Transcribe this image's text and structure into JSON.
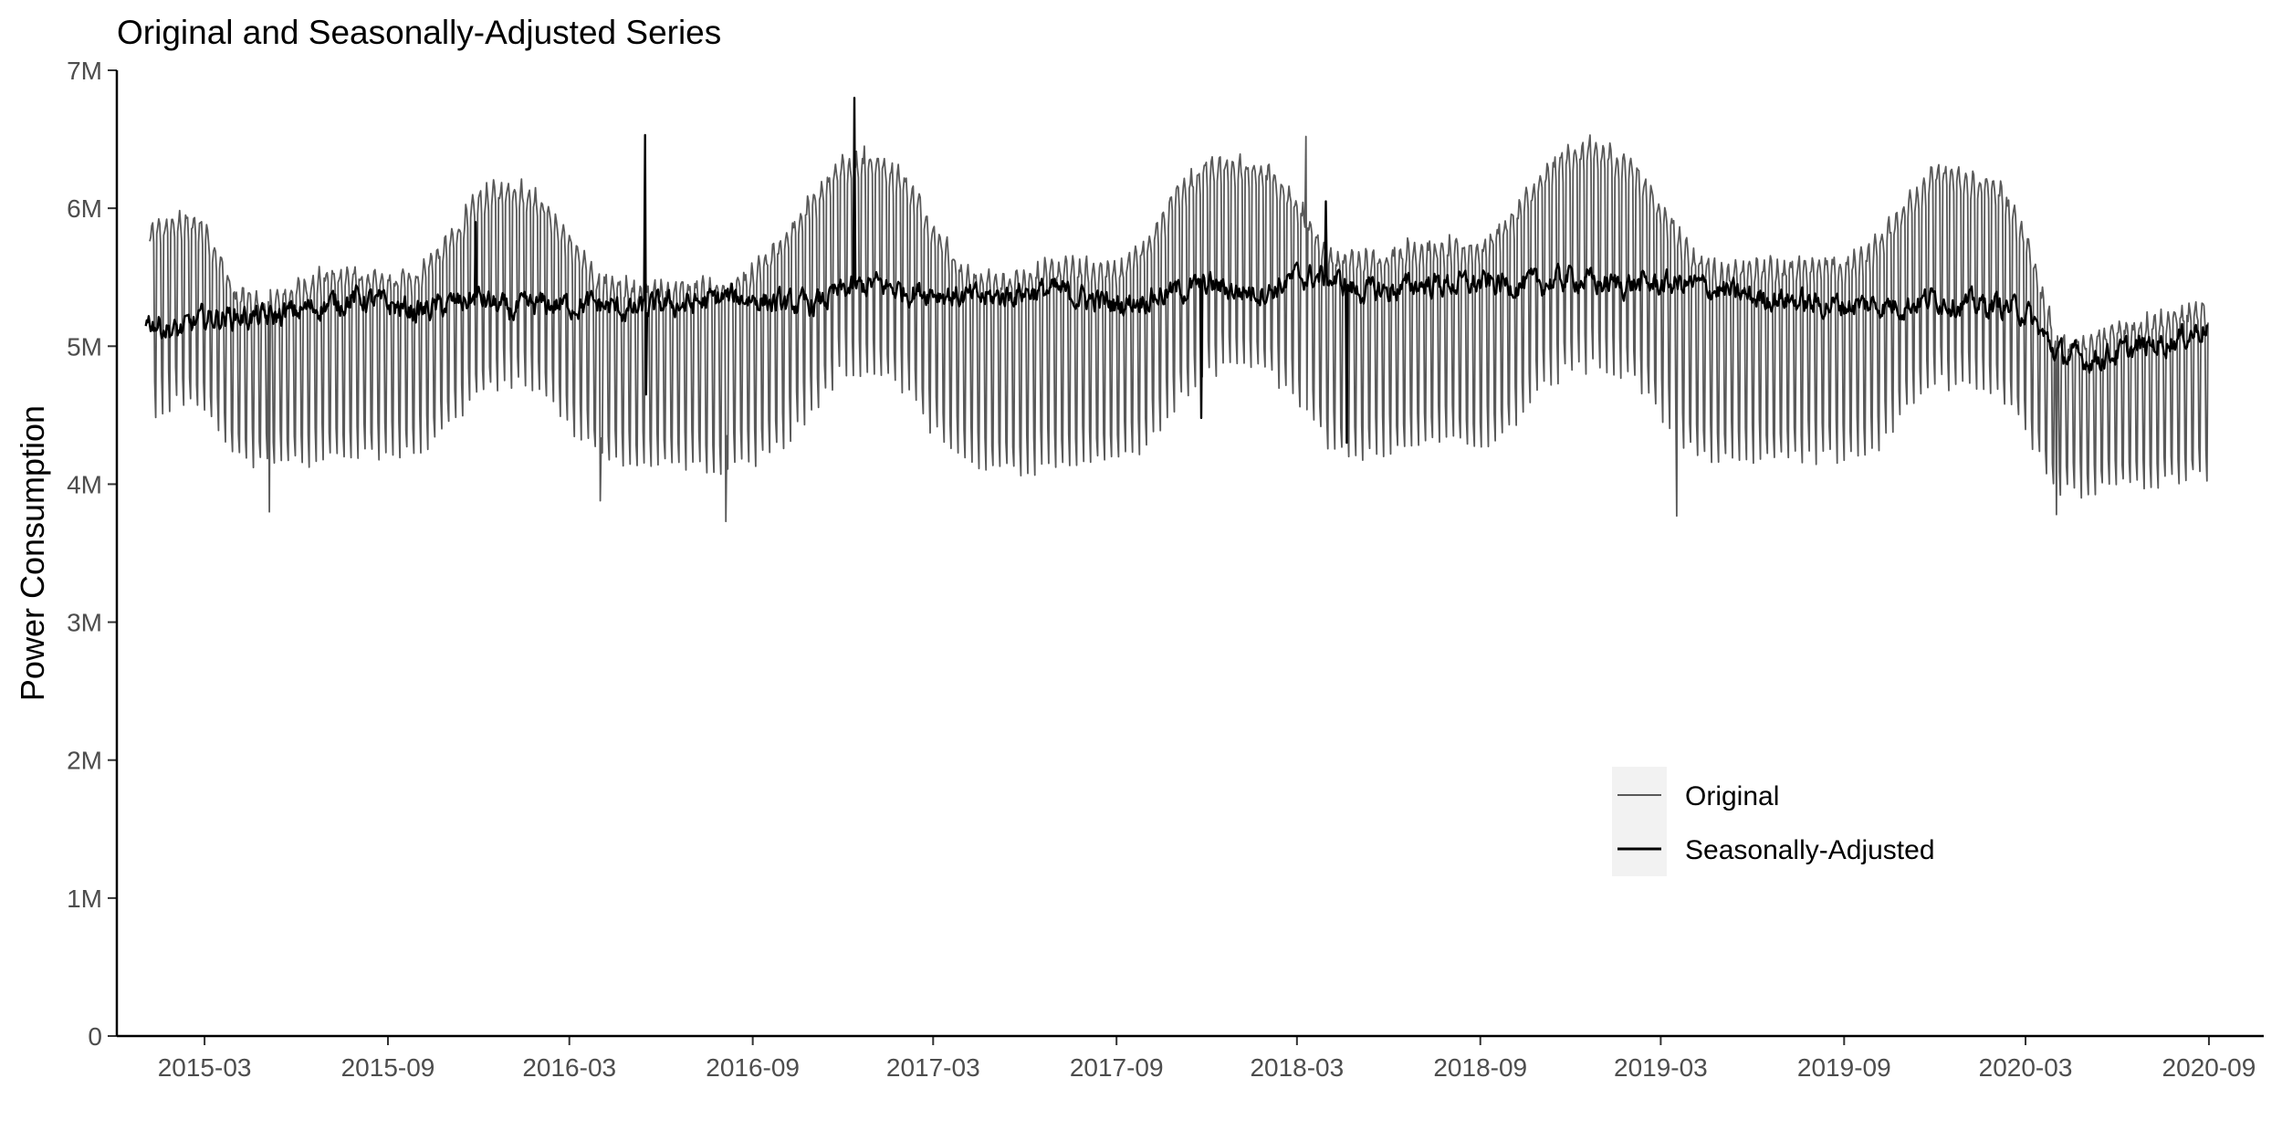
{
  "chart_data": {
    "type": "line",
    "title": "Original and Seasonally-Adjusted Series",
    "xlabel": "",
    "ylabel": "Power Consumption",
    "x_type": "time",
    "xlim": [
      "2014-12-03",
      "2020-10-26"
    ],
    "x_ticks": [
      "2015-03",
      "2015-09",
      "2016-03",
      "2016-09",
      "2017-03",
      "2017-09",
      "2018-03",
      "2018-09",
      "2019-03",
      "2019-09",
      "2020-03",
      "2020-09"
    ],
    "ylim": [
      0,
      7000000
    ],
    "y_ticks": [
      0,
      1000000,
      2000000,
      3000000,
      4000000,
      5000000,
      6000000,
      7000000
    ],
    "y_tick_labels": [
      "0",
      "1M",
      "2M",
      "3M",
      "4M",
      "5M",
      "6M",
      "7M"
    ],
    "grid": false,
    "legend_position": "bottom-right",
    "series": [
      {
        "name": "Original",
        "color": "#595959",
        "description_of_pattern": "daily values with weekly oscillation (weekday highs / weekend lows)",
        "envelope_x": [
          "2015-01-05",
          "2015-02-01",
          "2015-03-01",
          "2015-04-01",
          "2015-05-01",
          "2015-06-01",
          "2015-07-01",
          "2015-08-01",
          "2015-09-01",
          "2015-10-01",
          "2015-11-01",
          "2015-12-01",
          "2016-01-01",
          "2016-02-01",
          "2016-03-01",
          "2016-04-01",
          "2016-05-01",
          "2016-06-01",
          "2016-07-01",
          "2016-08-01",
          "2016-09-01",
          "2016-10-01",
          "2016-11-01",
          "2016-12-01",
          "2017-01-01",
          "2017-02-01",
          "2017-03-01",
          "2017-04-01",
          "2017-05-01",
          "2017-06-01",
          "2017-07-01",
          "2017-08-01",
          "2017-09-01",
          "2017-10-01",
          "2017-11-01",
          "2017-12-01",
          "2018-01-01",
          "2018-02-01",
          "2018-03-01",
          "2018-04-01",
          "2018-05-01",
          "2018-06-01",
          "2018-07-01",
          "2018-08-01",
          "2018-09-01",
          "2018-10-01",
          "2018-11-01",
          "2018-12-01",
          "2019-01-01",
          "2019-02-01",
          "2019-03-01",
          "2019-04-01",
          "2019-05-01",
          "2019-06-01",
          "2019-07-01",
          "2019-08-01",
          "2019-09-01",
          "2019-10-01",
          "2019-11-01",
          "2019-12-01",
          "2020-01-01",
          "2020-02-01",
          "2020-03-01",
          "2020-04-01",
          "2020-05-01",
          "2020-06-01",
          "2020-07-01",
          "2020-08-01",
          "2020-08-31"
        ],
        "envelope_high": [
          5850000,
          5950000,
          5900000,
          5400000,
          5350000,
          5450000,
          5550000,
          5550000,
          5500000,
          5550000,
          5800000,
          6100000,
          6200000,
          6100000,
          5800000,
          5500000,
          5450000,
          5450000,
          5450000,
          5450000,
          5550000,
          5800000,
          6100000,
          6350000,
          6400000,
          6250000,
          5900000,
          5550000,
          5500000,
          5550000,
          5600000,
          5600000,
          5600000,
          5750000,
          6150000,
          6350000,
          6350000,
          6300000,
          6100000,
          5700000,
          5650000,
          5700000,
          5750000,
          5750000,
          5750000,
          5950000,
          6250000,
          6450000,
          6450000,
          6350000,
          6050000,
          5700000,
          5550000,
          5600000,
          5600000,
          5650000,
          5600000,
          5750000,
          6050000,
          6300000,
          6250000,
          6200000,
          5850000,
          5050000,
          5050000,
          5150000,
          5200000,
          5250000,
          5300000
        ],
        "envelope_low": [
          4500000,
          4600000,
          4550000,
          4200000,
          4150000,
          4150000,
          4200000,
          4200000,
          4200000,
          4250000,
          4400000,
          4650000,
          4750000,
          4700000,
          4400000,
          4200000,
          4150000,
          4150000,
          4150000,
          4100000,
          4150000,
          4300000,
          4550000,
          4850000,
          4800000,
          4700000,
          4400000,
          4200000,
          4100000,
          4100000,
          4150000,
          4150000,
          4150000,
          4300000,
          4600000,
          4800000,
          4850000,
          4800000,
          4600000,
          4300000,
          4200000,
          4250000,
          4300000,
          4300000,
          4250000,
          4400000,
          4700000,
          4850000,
          4850000,
          4750000,
          4500000,
          4250000,
          4200000,
          4200000,
          4200000,
          4200000,
          4200000,
          4250000,
          4550000,
          4750000,
          4700000,
          4650000,
          4400000,
          3950000,
          3950000,
          4000000,
          4000000,
          4050000,
          4050000
        ],
        "notable_extremes": [
          {
            "x": "2015-05-05",
            "y": 3800000
          },
          {
            "x": "2016-04-01",
            "y": 3880000
          },
          {
            "x": "2016-08-05",
            "y": 3730000
          },
          {
            "x": "2016-12-22",
            "y": 6450000
          },
          {
            "x": "2018-03-10",
            "y": 6520000
          },
          {
            "x": "2018-12-20",
            "y": 6530000
          },
          {
            "x": "2019-03-17",
            "y": 3770000
          },
          {
            "x": "2020-04-01",
            "y": 3780000
          }
        ]
      },
      {
        "name": "Seasonally-Adjusted",
        "color": "#000000",
        "x": [
          "2015-01-01",
          "2015-02-01",
          "2015-03-01",
          "2015-04-01",
          "2015-05-01",
          "2015-06-01",
          "2015-07-01",
          "2015-08-01",
          "2015-09-01",
          "2015-10-01",
          "2015-11-01",
          "2015-12-01",
          "2016-01-01",
          "2016-02-01",
          "2016-03-01",
          "2016-04-01",
          "2016-05-01",
          "2016-06-01",
          "2016-07-01",
          "2016-08-01",
          "2016-09-01",
          "2016-10-01",
          "2016-11-01",
          "2016-12-01",
          "2017-01-01",
          "2017-02-01",
          "2017-03-01",
          "2017-04-01",
          "2017-05-01",
          "2017-06-01",
          "2017-07-01",
          "2017-08-01",
          "2017-09-01",
          "2017-10-01",
          "2017-11-01",
          "2017-12-01",
          "2018-01-01",
          "2018-02-01",
          "2018-03-01",
          "2018-04-01",
          "2018-05-01",
          "2018-06-01",
          "2018-07-01",
          "2018-08-01",
          "2018-09-01",
          "2018-10-01",
          "2018-11-01",
          "2018-12-01",
          "2019-01-01",
          "2019-02-01",
          "2019-03-01",
          "2019-04-01",
          "2019-05-01",
          "2019-06-01",
          "2019-07-01",
          "2019-08-01",
          "2019-09-01",
          "2019-10-01",
          "2019-11-01",
          "2019-12-01",
          "2020-01-01",
          "2020-02-01",
          "2020-03-01",
          "2020-04-01",
          "2020-05-01",
          "2020-06-01",
          "2020-07-01",
          "2020-08-01",
          "2020-08-31"
        ],
        "y": [
          5200000,
          5100000,
          5200000,
          5220000,
          5200000,
          5250000,
          5300000,
          5350000,
          5300000,
          5250000,
          5300000,
          5350000,
          5250000,
          5300000,
          5300000,
          5300000,
          5250000,
          5300000,
          5300000,
          5350000,
          5350000,
          5300000,
          5300000,
          5400000,
          5450000,
          5400000,
          5400000,
          5350000,
          5350000,
          5400000,
          5400000,
          5350000,
          5300000,
          5350000,
          5400000,
          5450000,
          5400000,
          5400000,
          5500000,
          5500000,
          5400000,
          5400000,
          5450000,
          5450000,
          5450000,
          5450000,
          5450000,
          5500000,
          5450000,
          5450000,
          5450000,
          5450000,
          5400000,
          5350000,
          5350000,
          5300000,
          5300000,
          5300000,
          5300000,
          5350000,
          5300000,
          5300000,
          5250000,
          4950000,
          4900000,
          4950000,
          5000000,
          5050000,
          5150000
        ],
        "spikes": [
          {
            "x": "2016-05-16",
            "y": 6530000
          },
          {
            "x": "2016-12-12",
            "y": 6800000
          },
          {
            "x": "2015-11-28",
            "y": 5900000
          },
          {
            "x": "2018-03-30",
            "y": 6050000
          },
          {
            "x": "2016-05-17",
            "y": 4650000
          },
          {
            "x": "2017-11-25",
            "y": 4480000
          },
          {
            "x": "2018-04-20",
            "y": 4300000
          }
        ]
      }
    ]
  }
}
